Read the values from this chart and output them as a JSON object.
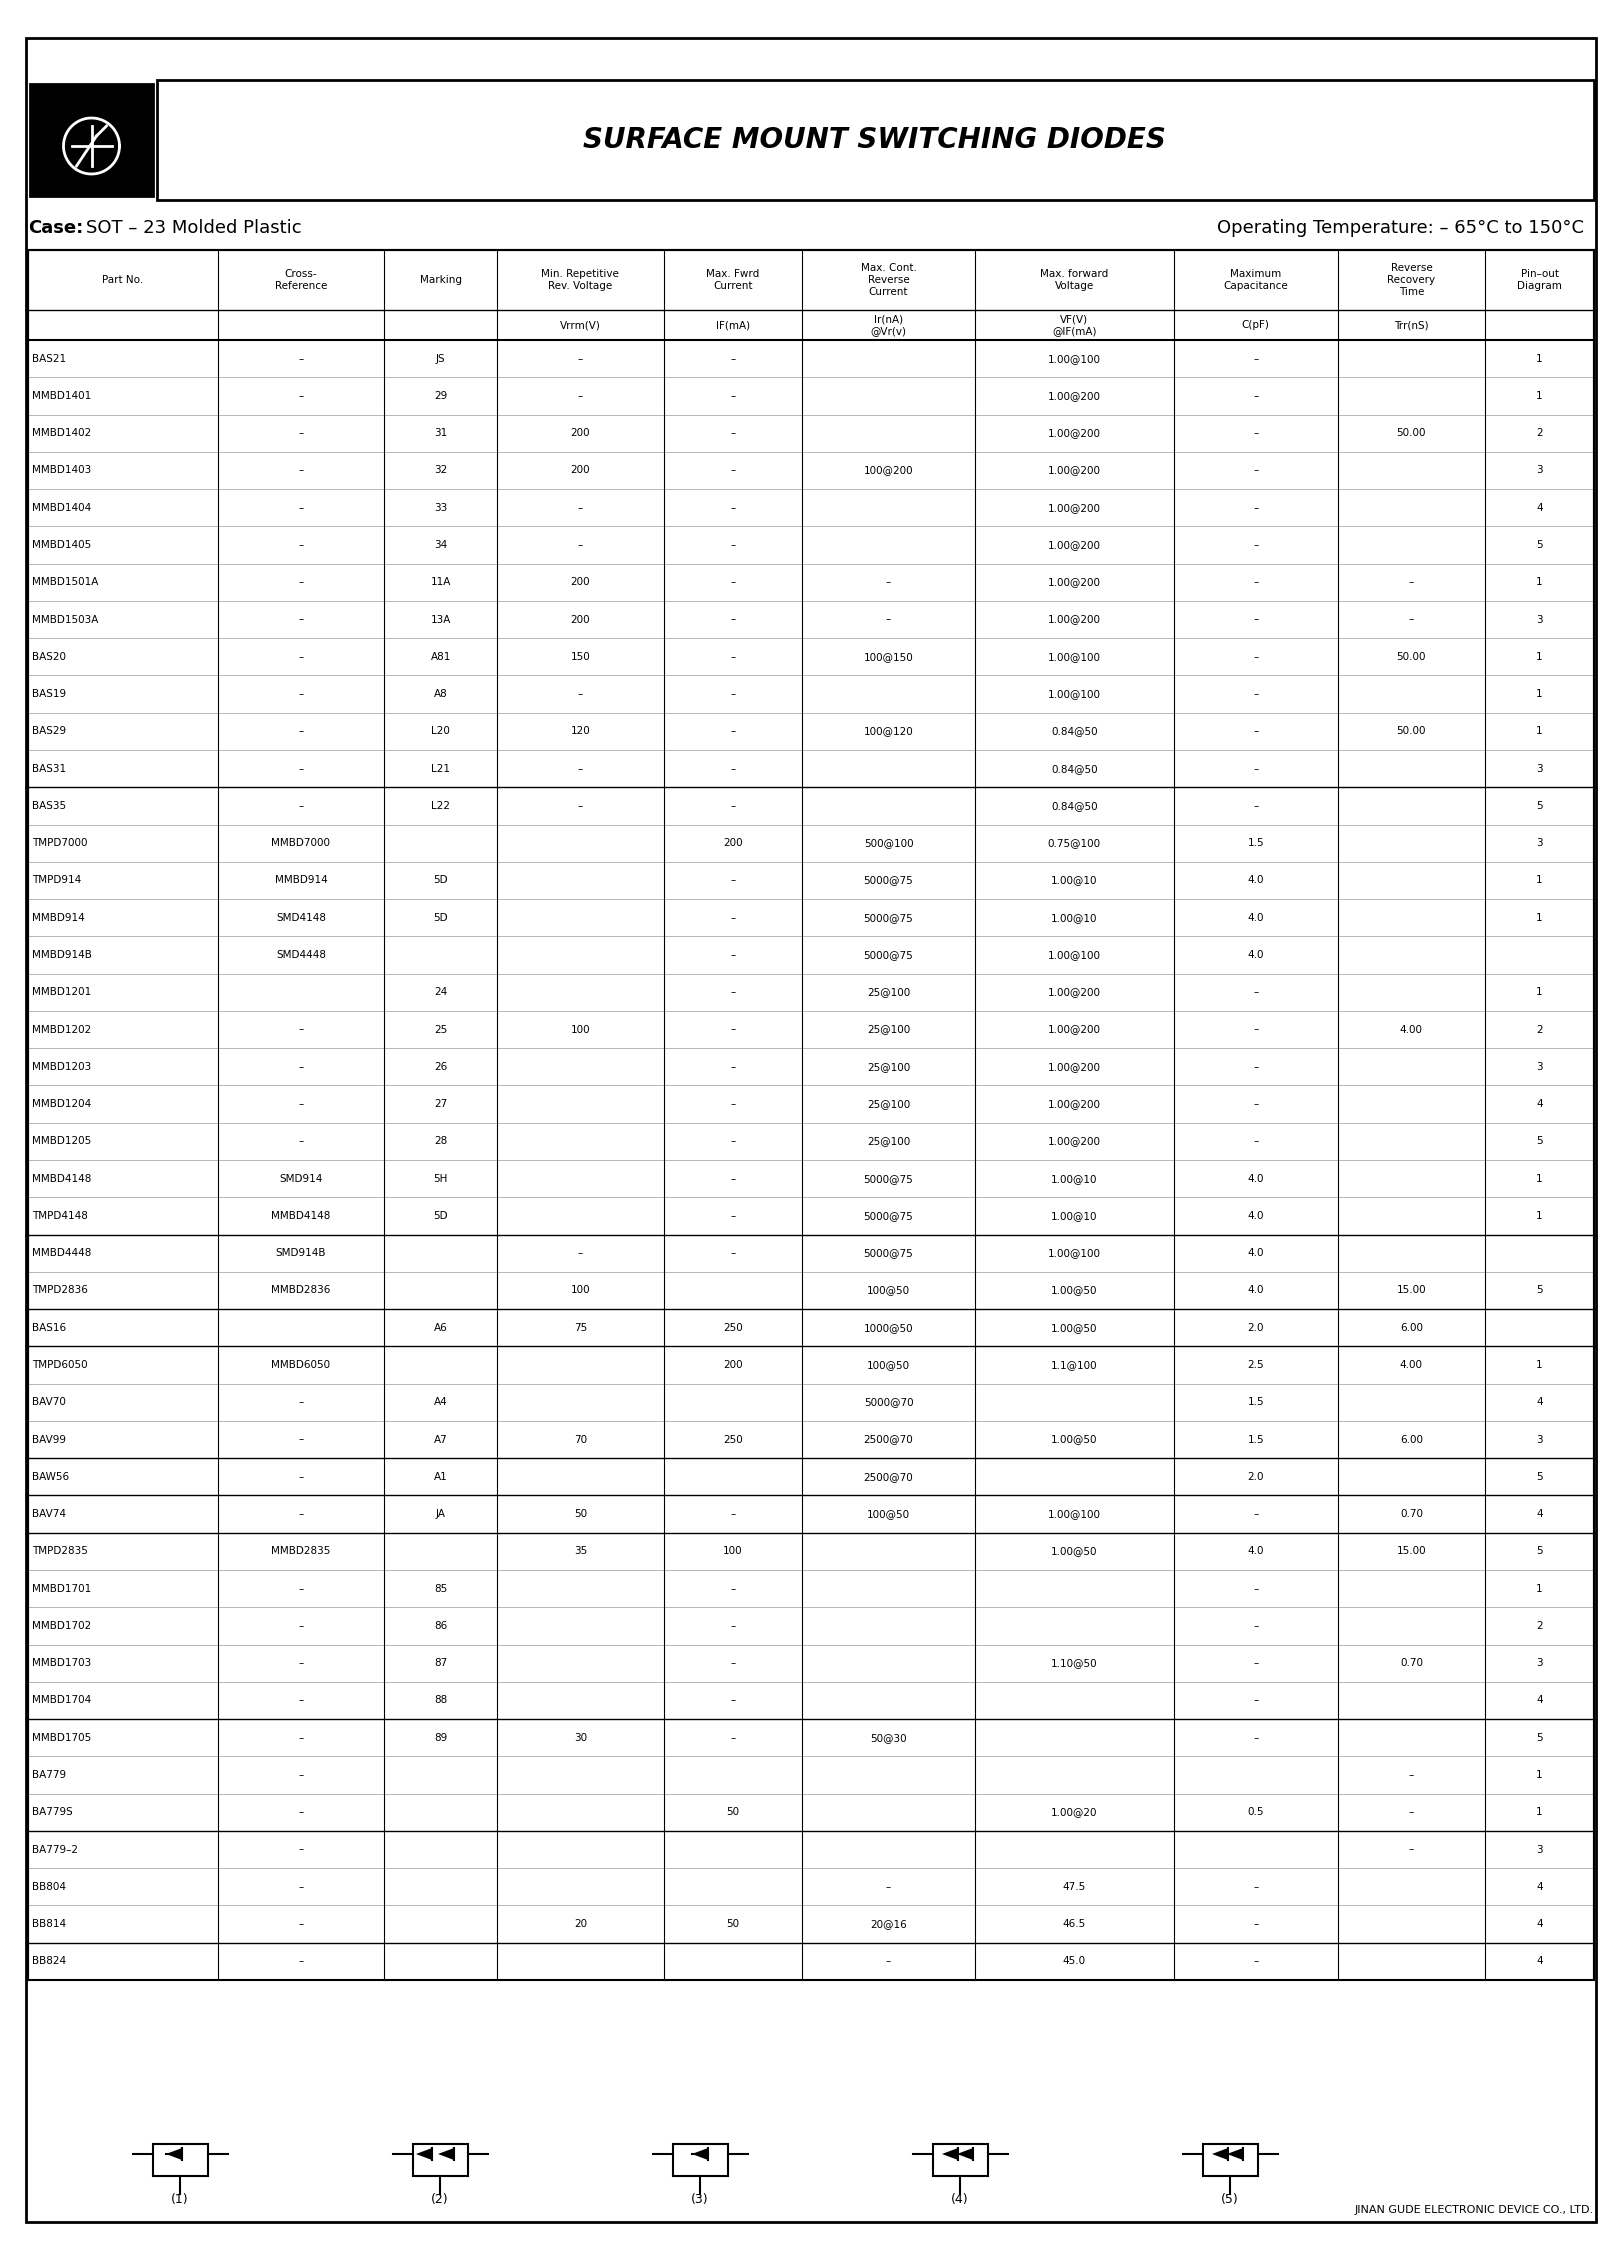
{
  "title": "SURFACE MOUNT SWITCHING DIODES",
  "case_text": "Case: SOT – 23 Molded Plastic",
  "op_temp": "Operating Temperature: – 65°C to 150°C",
  "footer": "JINAN GUDE ELECTRONIC DEVICE CO., LTD.",
  "col_headers_line1": [
    "Part No.",
    "Cross-\nReference",
    "Marking",
    "Min. Repetitive\nRev. Voltage",
    "Max. Fwrd\nCurrent",
    "Max. Cont.\nReverse\nCurrent",
    "Max. forward\nVoltage",
    "Maximum\nCapacitance",
    "Reverse\nRecovery\nTime",
    "Pin–out\nDiagram"
  ],
  "col_headers_line2": [
    "",
    "",
    "",
    "Vrrm(V)",
    "IF(mA)",
    "Ir(nA)\n@Vr(v)",
    "VF(V)\n@IF(mA)",
    "C(pF)",
    "Trr(nS)",
    ""
  ],
  "rows": [
    [
      "BAS21",
      "–",
      "JS",
      "–",
      "–",
      "",
      "1.00@100",
      "–",
      "",
      "1"
    ],
    [
      "MMBD1401",
      "–",
      "29",
      "–",
      "–",
      "",
      "1.00@200",
      "–",
      "",
      "1"
    ],
    [
      "MMBD1402",
      "–",
      "31",
      "200",
      "–",
      "",
      "1.00@200",
      "–",
      "50.00",
      "2"
    ],
    [
      "MMBD1403",
      "–",
      "32",
      "200",
      "–",
      "100@200",
      "1.00@200",
      "–",
      "",
      "3"
    ],
    [
      "MMBD1404",
      "–",
      "33",
      "–",
      "–",
      "",
      "1.00@200",
      "–",
      "",
      "4"
    ],
    [
      "MMBD1405",
      "–",
      "34",
      "–",
      "–",
      "",
      "1.00@200",
      "–",
      "",
      "5"
    ],
    [
      "MMBD1501A",
      "–",
      "11A",
      "200",
      "–",
      "–",
      "1.00@200",
      "–",
      "–",
      "1"
    ],
    [
      "MMBD1503A",
      "–",
      "13A",
      "200",
      "–",
      "–",
      "1.00@200",
      "–",
      "–",
      "3"
    ],
    [
      "BAS20",
      "–",
      "A81",
      "150",
      "–",
      "100@150",
      "1.00@100",
      "–",
      "50.00",
      "1"
    ],
    [
      "BAS19",
      "–",
      "A8",
      "–",
      "–",
      "",
      "1.00@100",
      "–",
      "",
      "1"
    ],
    [
      "BAS29",
      "–",
      "L20",
      "120",
      "–",
      "100@120",
      "0.84@50",
      "–",
      "50.00",
      "1"
    ],
    [
      "BAS31",
      "–",
      "L21",
      "–",
      "–",
      "",
      "0.84@50",
      "–",
      "",
      "3"
    ],
    [
      "BAS35",
      "–",
      "L22",
      "–",
      "–",
      "",
      "0.84@50",
      "–",
      "",
      "5"
    ],
    [
      "TMPD7000",
      "MMBD7000",
      "",
      "",
      "200",
      "500@100",
      "0.75@100",
      "1.5",
      "",
      "3"
    ],
    [
      "TMPD914",
      "MMBD914",
      "5D",
      "",
      "–",
      "5000@75",
      "1.00@10",
      "4.0",
      "",
      "1"
    ],
    [
      "MMBD914",
      "SMD4148",
      "5D",
      "",
      "–",
      "5000@75",
      "1.00@10",
      "4.0",
      "",
      "1"
    ],
    [
      "MMBD914B",
      "SMD4448",
      "",
      "",
      "–",
      "5000@75",
      "1.00@100",
      "4.0",
      "",
      ""
    ],
    [
      "MMBD1201",
      "",
      "24",
      "",
      "–",
      "25@100",
      "1.00@200",
      "–",
      "",
      "1"
    ],
    [
      "MMBD1202",
      "–",
      "25",
      "100",
      "–",
      "25@100",
      "1.00@200",
      "–",
      "4.00",
      "2"
    ],
    [
      "MMBD1203",
      "–",
      "26",
      "",
      "–",
      "25@100",
      "1.00@200",
      "–",
      "",
      "3"
    ],
    [
      "MMBD1204",
      "–",
      "27",
      "",
      "–",
      "25@100",
      "1.00@200",
      "–",
      "",
      "4"
    ],
    [
      "MMBD1205",
      "–",
      "28",
      "",
      "–",
      "25@100",
      "1.00@200",
      "–",
      "",
      "5"
    ],
    [
      "MMBD4148",
      "SMD914",
      "5H",
      "",
      "–",
      "5000@75",
      "1.00@10",
      "4.0",
      "",
      "1"
    ],
    [
      "TMPD4148",
      "MMBD4148",
      "5D",
      "",
      "–",
      "5000@75",
      "1.00@10",
      "4.0",
      "",
      "1"
    ],
    [
      "MMBD4448",
      "SMD914B",
      "",
      "–",
      "–",
      "5000@75",
      "1.00@100",
      "4.0",
      "",
      ""
    ],
    [
      "TMPD2836",
      "MMBD2836",
      "",
      "100",
      "",
      "100@50",
      "1.00@50",
      "4.0",
      "15.00",
      "5"
    ],
    [
      "BAS16",
      "",
      "A6",
      "75",
      "250",
      "1000@50",
      "1.00@50",
      "2.0",
      "6.00",
      ""
    ],
    [
      "TMPD6050",
      "MMBD6050",
      "",
      "",
      "200",
      "100@50",
      "1.1@100",
      "2.5",
      "4.00",
      "1"
    ],
    [
      "BAV70",
      "–",
      "A4",
      "",
      "",
      "5000@70",
      "",
      "1.5",
      "",
      "4"
    ],
    [
      "BAV99",
      "–",
      "A7",
      "70",
      "250",
      "2500@70",
      "1.00@50",
      "1.5",
      "6.00",
      "3"
    ],
    [
      "BAW56",
      "–",
      "A1",
      "",
      "",
      "2500@70",
      "",
      "2.0",
      "",
      "5"
    ],
    [
      "BAV74",
      "–",
      "JA",
      "50",
      "–",
      "100@50",
      "1.00@100",
      "–",
      "0.70",
      "4"
    ],
    [
      "TMPD2835",
      "MMBD2835",
      "",
      "35",
      "100",
      "",
      "1.00@50",
      "4.0",
      "15.00",
      "5"
    ],
    [
      "MMBD1701",
      "–",
      "85",
      "",
      "–",
      "",
      "",
      "–",
      "",
      "1"
    ],
    [
      "MMBD1702",
      "–",
      "86",
      "",
      "–",
      "",
      "",
      "–",
      "",
      "2"
    ],
    [
      "MMBD1703",
      "–",
      "87",
      "",
      "–",
      "",
      "1.10@50",
      "–",
      "0.70",
      "3"
    ],
    [
      "MMBD1704",
      "–",
      "88",
      "",
      "–",
      "",
      "",
      "–",
      "",
      "4"
    ],
    [
      "MMBD1705",
      "–",
      "89",
      "30",
      "–",
      "50@30",
      "",
      "–",
      "",
      "5"
    ],
    [
      "BA779",
      "–",
      "",
      "",
      "",
      "",
      "",
      "",
      "–",
      "1"
    ],
    [
      "BA779S",
      "–",
      "",
      "",
      "50",
      "",
      "1.00@20",
      "0.5",
      "–",
      "1"
    ],
    [
      "BA779–2",
      "–",
      "",
      "",
      "",
      "",
      "",
      "",
      "–",
      "3"
    ],
    [
      "BB804",
      "–",
      "",
      "",
      "",
      "–",
      "47.5",
      "–",
      "",
      "4"
    ],
    [
      "BB814",
      "–",
      "",
      "20",
      "50",
      "20@16",
      "46.5",
      "–",
      "",
      "4"
    ],
    [
      "BB824",
      "–",
      "",
      "",
      "",
      "–",
      "45.0",
      "–",
      "",
      "4"
    ]
  ],
  "bg_color": "#ffffff",
  "text_color": "#000000",
  "line_color": "#000000"
}
